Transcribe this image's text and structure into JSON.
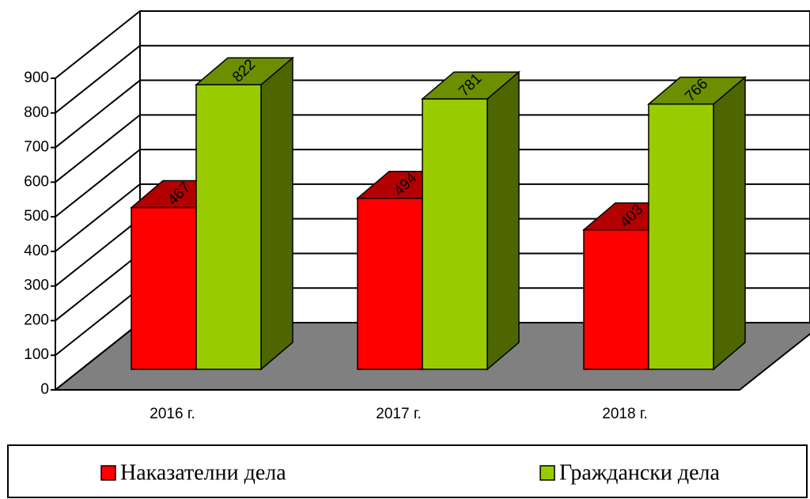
{
  "chart_data": {
    "type": "bar3d",
    "categories": [
      "2016 г.",
      "2017 г.",
      "2018 г."
    ],
    "series": [
      {
        "name": "Наказателни дела",
        "color": "#ff0000",
        "values": [
          467,
          494,
          403
        ]
      },
      {
        "name": "Граждански дела",
        "color": "#99cc00",
        "values": [
          822,
          781,
          766
        ]
      }
    ],
    "ylim": [
      0,
      900
    ],
    "yticks": [
      0,
      100,
      200,
      300,
      400,
      500,
      600,
      700,
      800,
      900
    ],
    "grid": true,
    "legend": "bottom"
  }
}
